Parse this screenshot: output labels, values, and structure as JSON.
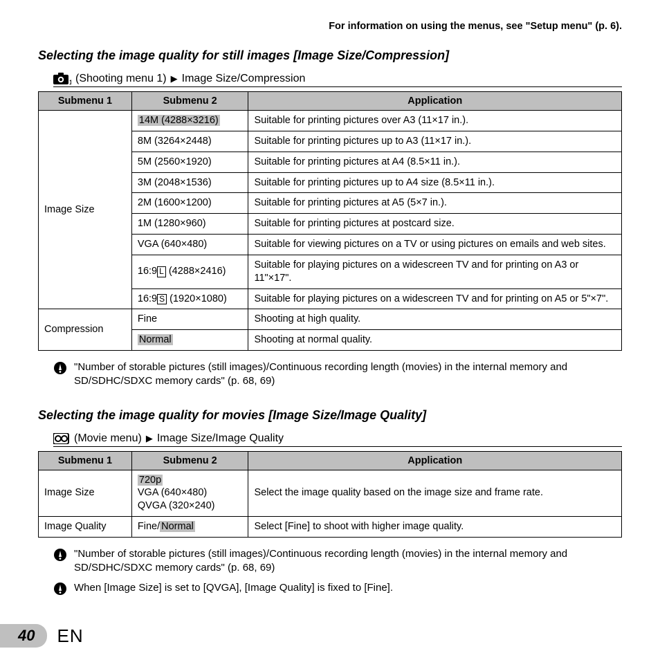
{
  "top_reference": "For information on using the menus, see \"Setup menu\" (p. 6).",
  "section1": {
    "title": "Selecting the image quality for still images [Image Size/Compression]",
    "breadcrumb_prefix": "(Shooting menu 1)",
    "breadcrumb_suffix": "Image Size/Compression",
    "headers": {
      "c1": "Submenu 1",
      "c2": "Submenu 2",
      "c3": "Application"
    },
    "image_size_label": "Image Size",
    "compression_label": "Compression",
    "image_rows": [
      {
        "s2": "14M (4288×3216)",
        "app": "Suitable for printing pictures over A3 (11×17 in.).",
        "hl": true
      },
      {
        "s2": "8M (3264×2448)",
        "app": "Suitable for printing pictures up to A3 (11×17 in.)."
      },
      {
        "s2": "5M (2560×1920)",
        "app": "Suitable for printing pictures at A4 (8.5×11 in.)."
      },
      {
        "s2": "3M (2048×1536)",
        "app": "Suitable for printing pictures up to A4 size (8.5×11 in.)."
      },
      {
        "s2": "2M (1600×1200)",
        "app": "Suitable for printing pictures at A5 (5×7 in.)."
      },
      {
        "s2": "1M (1280×960)",
        "app": "Suitable for printing pictures at postcard size."
      },
      {
        "s2": "VGA (640×480)",
        "app": "Suitable for viewing pictures on a TV or using pictures on emails and web sites."
      },
      {
        "s2_pre": "16:9",
        "s2_box": "L",
        "s2_post": " (4288×2416)",
        "app": "Suitable for playing pictures on a widescreen TV and for printing on A3 or 11\"×17\"."
      },
      {
        "s2_pre": "16:9",
        "s2_box": "S",
        "s2_post": " (1920×1080)",
        "app": "Suitable for playing pictures on a widescreen TV and for printing on A5 or 5\"×7\"."
      }
    ],
    "compression_rows": [
      {
        "s2": "Fine",
        "app": "Shooting at high quality."
      },
      {
        "s2_pre": "",
        "s2_hl": "Normal",
        "app": "Shooting at normal quality."
      }
    ],
    "note": "\"Number of storable pictures (still images)/Continuous recording length (movies) in the internal memory and SD/SDHC/SDXC memory cards\" (p. 68, 69)"
  },
  "section2": {
    "title": "Selecting the image quality for movies [Image Size/Image Quality]",
    "breadcrumb_prefix": "(Movie menu)",
    "breadcrumb_suffix": "Image Size/Image Quality",
    "headers": {
      "c1": "Submenu 1",
      "c2": "Submenu 2",
      "c3": "Application"
    },
    "rows": [
      {
        "s1": "Image Size",
        "s2_hl": "720p",
        "s2_rest": "VGA (640×480)\nQVGA (320×240)",
        "app": "Select the image quality based on the image size and frame rate."
      },
      {
        "s1": "Image Quality",
        "s2_pre": "Fine/",
        "s2_hl2": "Normal",
        "app": "Select [Fine] to shoot with higher image quality."
      }
    ],
    "note1": "\"Number of storable pictures (still images)/Continuous recording length (movies) in the internal memory and SD/SDHC/SDXC memory cards\" (p. 68, 69)",
    "note2": "When [Image Size] is set to [QVGA], [Image Quality] is fixed to [Fine]."
  },
  "footer": {
    "page": "40",
    "lang": "EN"
  },
  "colors": {
    "header_bg": "#bfbfbf",
    "text": "#000000",
    "bg": "#ffffff"
  },
  "col_widths": {
    "c1": "16%",
    "c2": "20%",
    "c3": "64%"
  }
}
